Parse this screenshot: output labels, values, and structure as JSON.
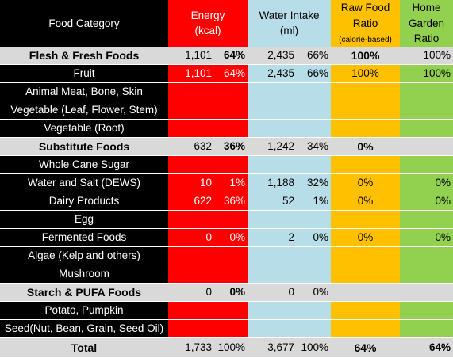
{
  "header": {
    "category": "Food Category",
    "energy": [
      "Energy",
      "(kcal)"
    ],
    "water": [
      "Water Intake",
      "(ml)"
    ],
    "raw": [
      "Raw Food",
      "Ratio",
      "(calorie-based)"
    ],
    "garden": [
      "Home",
      "Garden",
      "Ratio"
    ]
  },
  "rows": [
    {
      "label": "Flesh & Fresh Foods",
      "e": "1,101",
      "ep": "64%",
      "w": "2,435",
      "wp": "66%",
      "raw": "100%",
      "garden": "100%"
    },
    {
      "label": "Fruit",
      "e": "1,101",
      "ep": "64%",
      "w": "2,435",
      "wp": "66%",
      "raw": "100%",
      "garden": "100%"
    },
    {
      "label": "Animal Meat, Bone, Skin",
      "e": "",
      "ep": "",
      "w": "",
      "wp": "",
      "raw": "",
      "garden": ""
    },
    {
      "label": "Vegetable (Leaf, Flower, Stem)",
      "e": "",
      "ep": "",
      "w": "",
      "wp": "",
      "raw": "",
      "garden": ""
    },
    {
      "label": "Vegetable (Root)",
      "e": "",
      "ep": "",
      "w": "",
      "wp": "",
      "raw": "",
      "garden": ""
    },
    {
      "label": "Substitute Foods",
      "e": "632",
      "ep": "36%",
      "w": "1,242",
      "wp": "34%",
      "raw": "0%",
      "garden": ""
    },
    {
      "label": "Whole Cane Sugar",
      "e": "",
      "ep": "",
      "w": "",
      "wp": "",
      "raw": "",
      "garden": ""
    },
    {
      "label": "Water and Salt (DEWS)",
      "e": "10",
      "ep": "1%",
      "w": "1,188",
      "wp": "32%",
      "raw": "0%",
      "garden": "0%"
    },
    {
      "label": "Dairy Products",
      "e": "622",
      "ep": "36%",
      "w": "52",
      "wp": "1%",
      "raw": "0%",
      "garden": "0%"
    },
    {
      "label": "Egg",
      "e": "",
      "ep": "",
      "w": "",
      "wp": "",
      "raw": "",
      "garden": ""
    },
    {
      "label": "Fermented Foods",
      "e": "0",
      "ep": "0%",
      "w": "2",
      "wp": "0%",
      "raw": "0%",
      "garden": "0%"
    },
    {
      "label": "Algae (Kelp and others)",
      "e": "",
      "ep": "",
      "w": "",
      "wp": "",
      "raw": "",
      "garden": ""
    },
    {
      "label": "Mushroom",
      "e": "",
      "ep": "",
      "w": "",
      "wp": "",
      "raw": "",
      "garden": ""
    },
    {
      "label": "Starch & PUFA Foods",
      "e": "0",
      "ep": "0%",
      "w": "0",
      "wp": "0%",
      "raw": "",
      "garden": ""
    },
    {
      "label": "Potato, Pumpkin",
      "e": "",
      "ep": "",
      "w": "",
      "wp": "",
      "raw": "",
      "garden": ""
    },
    {
      "label": "Seed(Nut, Bean, Grain, Seed Oil)",
      "e": "",
      "ep": "",
      "w": "",
      "wp": "",
      "raw": "",
      "garden": ""
    },
    {
      "label": "Total",
      "e": "1,733",
      "ep": "100%",
      "w": "3,677",
      "wp": "100%",
      "raw": "64%",
      "garden": "64%"
    }
  ],
  "colors": {
    "black": "#000000",
    "section_gray": "#d9d9d9",
    "energy_red": "#ff0000",
    "water_blue": "#b7dde8",
    "raw_yellow": "#ffc000",
    "garden_green": "#92d050"
  }
}
